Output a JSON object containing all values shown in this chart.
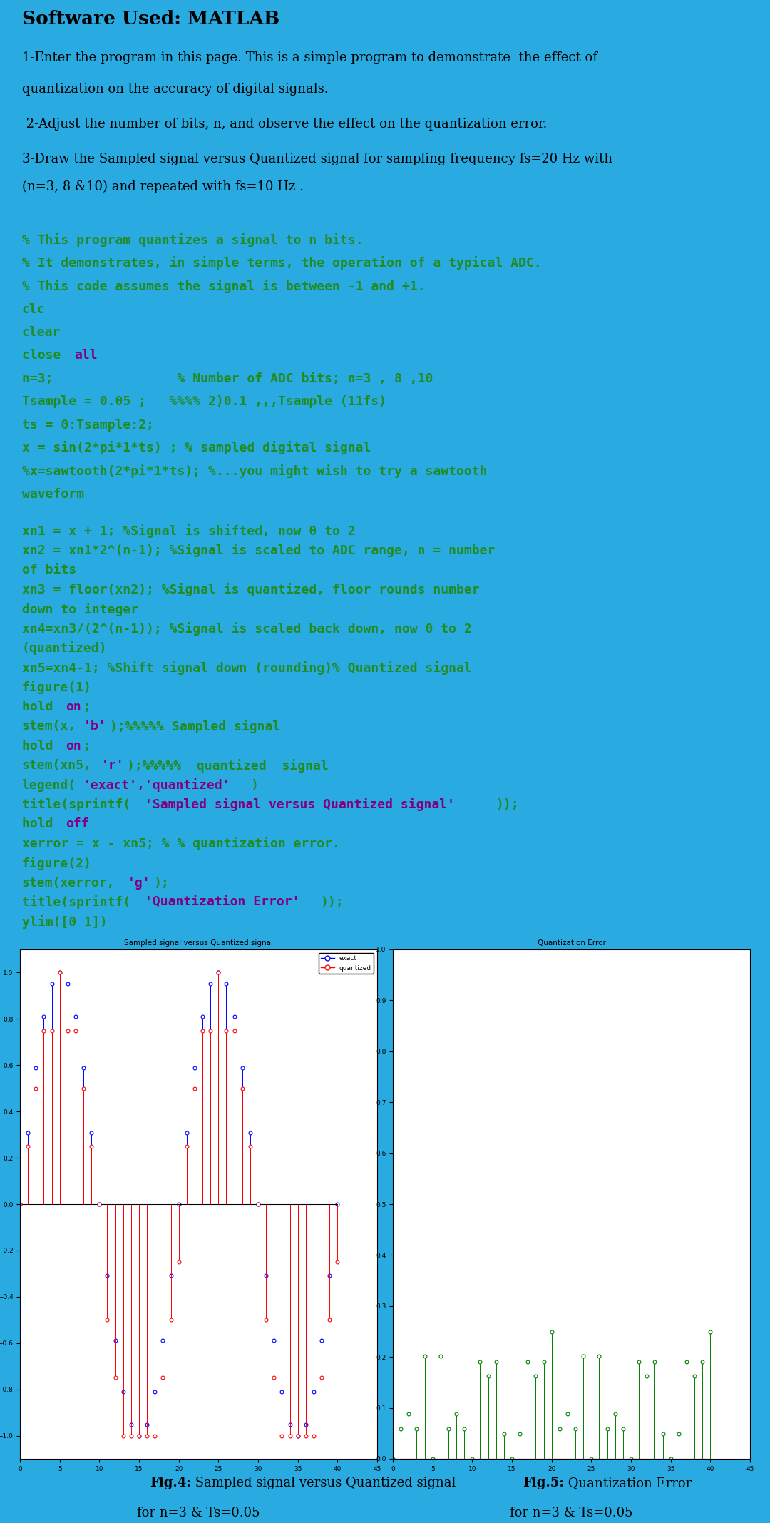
{
  "title": "Software Used: MATLAB",
  "cyan_bg": "#29ABE2",
  "white_bg": "#FFFFFF",
  "light_code_bg": "#F8F8F8",
  "green_code": "#228B22",
  "purple_kw": "#800080",
  "black_text": "#000000",
  "intro_lines": [
    "1-Enter the program in this page. This is a simple program to demonstrate  the effect of",
    "quantization on the accuracy of digital signals.",
    " 2-Adjust the number of bits, n, and observe the effect on the quantization error.",
    "3-Draw the Sampled signal versus Quantized signal for sampling frequency fs=20 Hz with",
    "(n=3, 8 &10) and repeated with fs=10 Hz ."
  ],
  "code1_lines": [
    [
      [
        "% This program quantizes a signal to n bits.",
        "green"
      ]
    ],
    [
      [
        "% It demonstrates, in simple terms, the operation of a typical ADC.",
        "green"
      ]
    ],
    [
      [
        "% This code assumes the signal is between -1 and +1.",
        "green"
      ]
    ],
    [
      [
        "clc",
        "green"
      ]
    ],
    [
      [
        "clear",
        "green"
      ]
    ],
    [
      [
        "close ",
        "green"
      ],
      [
        "all",
        "purple"
      ]
    ],
    [
      [
        "n=3;                % Number of ADC bits; n=3 , 8 ,10",
        "green"
      ]
    ],
    [
      [
        "Tsample = 0.05 ;   %%%% 2)0.1 ,,,Tsample (11fs)",
        "green"
      ]
    ],
    [
      [
        "ts = 0:Tsample:2;",
        "green"
      ]
    ],
    [
      [
        "x = sin(2*pi*1*ts) ; % sampled digital signal",
        "green"
      ]
    ],
    [
      [
        "%x=sawtooth(2*pi*1*ts); %...you might wish to try a sawtooth",
        "green"
      ]
    ],
    [
      [
        "waveform",
        "green"
      ]
    ]
  ],
  "code2_lines": [
    [
      [
        "xn1 = x + 1; %Signal is shifted, now 0 to 2",
        "green"
      ]
    ],
    [
      [
        "xn2 = xn1*2^(n-1); %Signal is scaled to ADC range, n = number",
        "green"
      ]
    ],
    [
      [
        "of bits",
        "green"
      ]
    ],
    [
      [
        "xn3 = floor(xn2); %Signal is quantized, floor rounds number",
        "green"
      ]
    ],
    [
      [
        "down to integer",
        "green"
      ]
    ],
    [
      [
        "xn4=xn3/(2^(n-1)); %Signal is scaled back down, now 0 to 2",
        "green"
      ]
    ],
    [
      [
        "(quantized)",
        "green"
      ]
    ],
    [
      [
        "xn5=xn4-1; %Shift signal down (rounding)% Quantized signal",
        "green"
      ]
    ],
    [
      [
        "figure(1)",
        "green"
      ]
    ],
    [
      [
        "hold ",
        "green"
      ],
      [
        "on",
        "purple"
      ],
      [
        ";",
        "green"
      ]
    ],
    [
      [
        "stem(x,",
        "green"
      ],
      [
        "'b'",
        "purple"
      ],
      [
        ");%%%%% Sampled signal",
        "green"
      ]
    ],
    [
      [
        "hold ",
        "green"
      ],
      [
        "on",
        "purple"
      ],
      [
        ";",
        "green"
      ]
    ],
    [
      [
        "stem(xn5,",
        "green"
      ],
      [
        "'r'",
        "purple"
      ],
      [
        ");%%%%%  quantized  signal",
        "green"
      ]
    ],
    [
      [
        "legend(",
        "green"
      ],
      [
        "'exact','quantized'",
        "purple"
      ],
      [
        ")",
        "green"
      ]
    ],
    [
      [
        "title(sprintf(",
        "green"
      ],
      [
        "'Sampled signal versus Quantized signal'",
        "purple"
      ],
      [
        "));",
        "green"
      ]
    ],
    [
      [
        "hold ",
        "green"
      ],
      [
        "off",
        "purple"
      ]
    ],
    [
      [
        "xerror = x - xn5; % % quantization error.",
        "green"
      ]
    ],
    [
      [
        "figure(2)",
        "green"
      ]
    ],
    [
      [
        "stem(xerror,",
        "green"
      ],
      [
        "'g'",
        "purple"
      ],
      [
        ");",
        "green"
      ]
    ],
    [
      [
        "title(sprintf(",
        "green"
      ],
      [
        "'Quantization Error'",
        "purple"
      ],
      [
        "));",
        "green"
      ]
    ],
    [
      [
        "ylim([0 1])",
        "green"
      ]
    ]
  ],
  "fig4_title": "Sampled signal versus Quantized signal",
  "fig5_title": "Quantization Error",
  "fig4_xlim": [
    0,
    45
  ],
  "fig4_ylim": [
    -1.1,
    1.1
  ],
  "fig5_xlim": [
    0,
    45
  ],
  "fig5_ylim": [
    0,
    1
  ],
  "n": 3,
  "Tsample": 0.05,
  "caption4_bold": "Fig.4:",
  "caption4_normal": " Sampled signal versus Quantized signal",
  "caption4_line2": "for n=3 & Ts=0.05",
  "caption5_bold": "Fig.5:",
  "caption5_normal": " Quantization Error",
  "caption5_line2": "for n=3 & Ts=0.05"
}
